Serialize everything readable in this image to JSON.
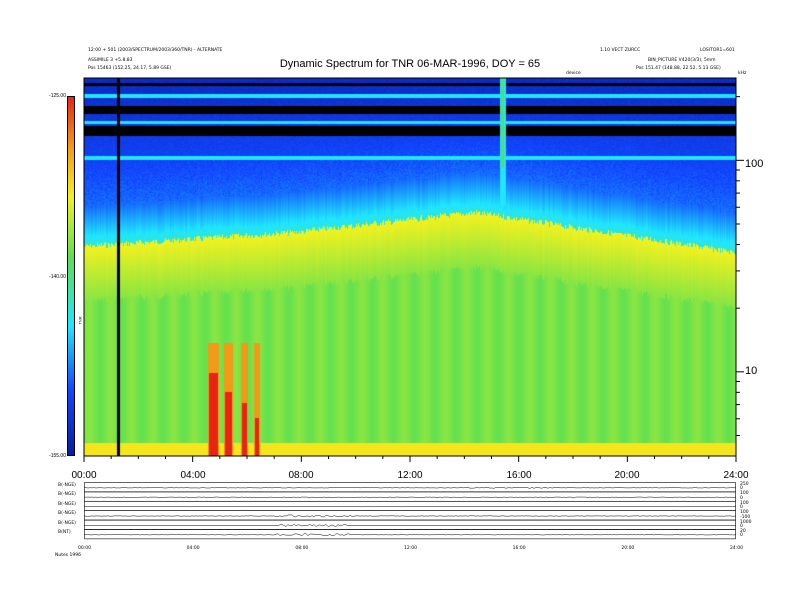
{
  "header": {
    "left_line1": "12:00 + 501 (2003/SPECTRUM/2003/360/TNR) - ALTERNATE",
    "left_line2": "ASSIMILE 3 +5.8.83",
    "left_pos": "Pos    15463 (152.25, 24.17, 5.89 GSE)",
    "right_line1": "1.10 VECT ZURCC",
    "right_line1b": "LOSITOR1=601",
    "right_line2": "BIN_PICTURE V420(3/3), 5mm",
    "right_pos": "Pos    151.47 (148.88, 22.52, 5.13 GSE)",
    "mid_label": "device",
    "khz_label": "kHz"
  },
  "chart_data": {
    "type": "heatmap",
    "title": "Dynamic Spectrum for TNR 06-MAR-1996, DOY = 65",
    "x_ticks": [
      "00:00",
      "04:00",
      "08:00",
      "12:00",
      "16:00",
      "20:00",
      "24:00"
    ],
    "y_ticks_right": [
      "100",
      "10"
    ],
    "colorbar_ticks": [
      "-125.00",
      "-140.00",
      "-155.00"
    ],
    "colorbar_label": "TNR",
    "colorbar_range": [
      -155,
      -125
    ],
    "x_range_hours": [
      0,
      24
    ],
    "y_scale": "log",
    "y_range_khz": [
      4,
      245
    ]
  },
  "panels": {
    "rows": [
      {
        "label": "B(-NGE)",
        "right_top": "250",
        "right_bot": "0"
      },
      {
        "label": "B(-NGE)",
        "right_top": "100",
        "right_bot": "0"
      },
      {
        "label": "B(-NGE)",
        "right_top": "100",
        "right_bot": "0"
      },
      {
        "label": "B(-NGE)",
        "right_top": "100",
        "right_bot": "-100"
      },
      {
        "label": "B(-NGE)",
        "right_top": "1000",
        "right_bot": "0"
      },
      {
        "label": "B(NT)",
        "right_top": "20",
        "right_bot": "0"
      }
    ],
    "time_ticks": [
      "00:00",
      "04:00",
      "08:00",
      "12:00",
      "16:00",
      "20:00",
      "24:00"
    ],
    "footer": "Nutes   1996"
  },
  "colors": {
    "black": "#000000",
    "navy": "#0a1ea0",
    "blue": "#1246ff",
    "cyan": "#20e6ff",
    "green": "#5ce052",
    "yellow": "#f4f21e",
    "orange": "#f29a18",
    "red": "#e82414"
  }
}
